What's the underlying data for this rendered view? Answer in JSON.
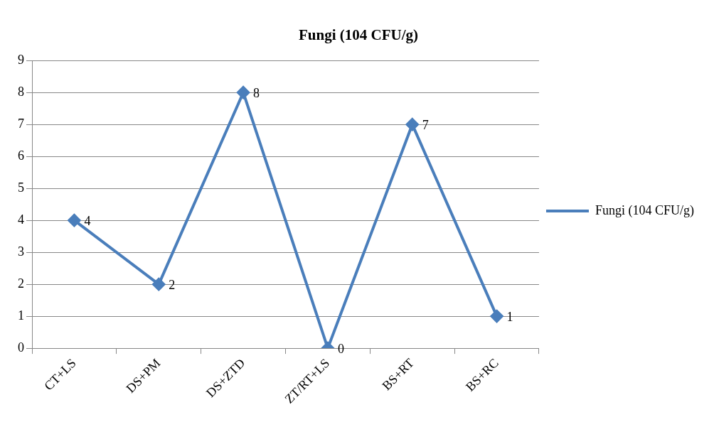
{
  "chart_data": {
    "type": "line",
    "title": "Fungi (104 CFU/g)",
    "categories": [
      "CT+LS",
      "DS+PM",
      "DS+ZTD",
      "ZT/RT+LS",
      "BS+RT",
      "BS+RC"
    ],
    "series": [
      {
        "name": "Fungi (104 CFU/g)",
        "color": "#4a7ebb",
        "values": [
          4,
          2,
          8,
          0,
          7,
          1
        ]
      }
    ],
    "ylim": [
      0,
      9
    ],
    "yticks": [
      0,
      1,
      2,
      3,
      4,
      5,
      6,
      7,
      8,
      9
    ],
    "grid": "y",
    "legend": "right",
    "marker": "diamond",
    "line_style": "solid",
    "data_labels": true
  }
}
